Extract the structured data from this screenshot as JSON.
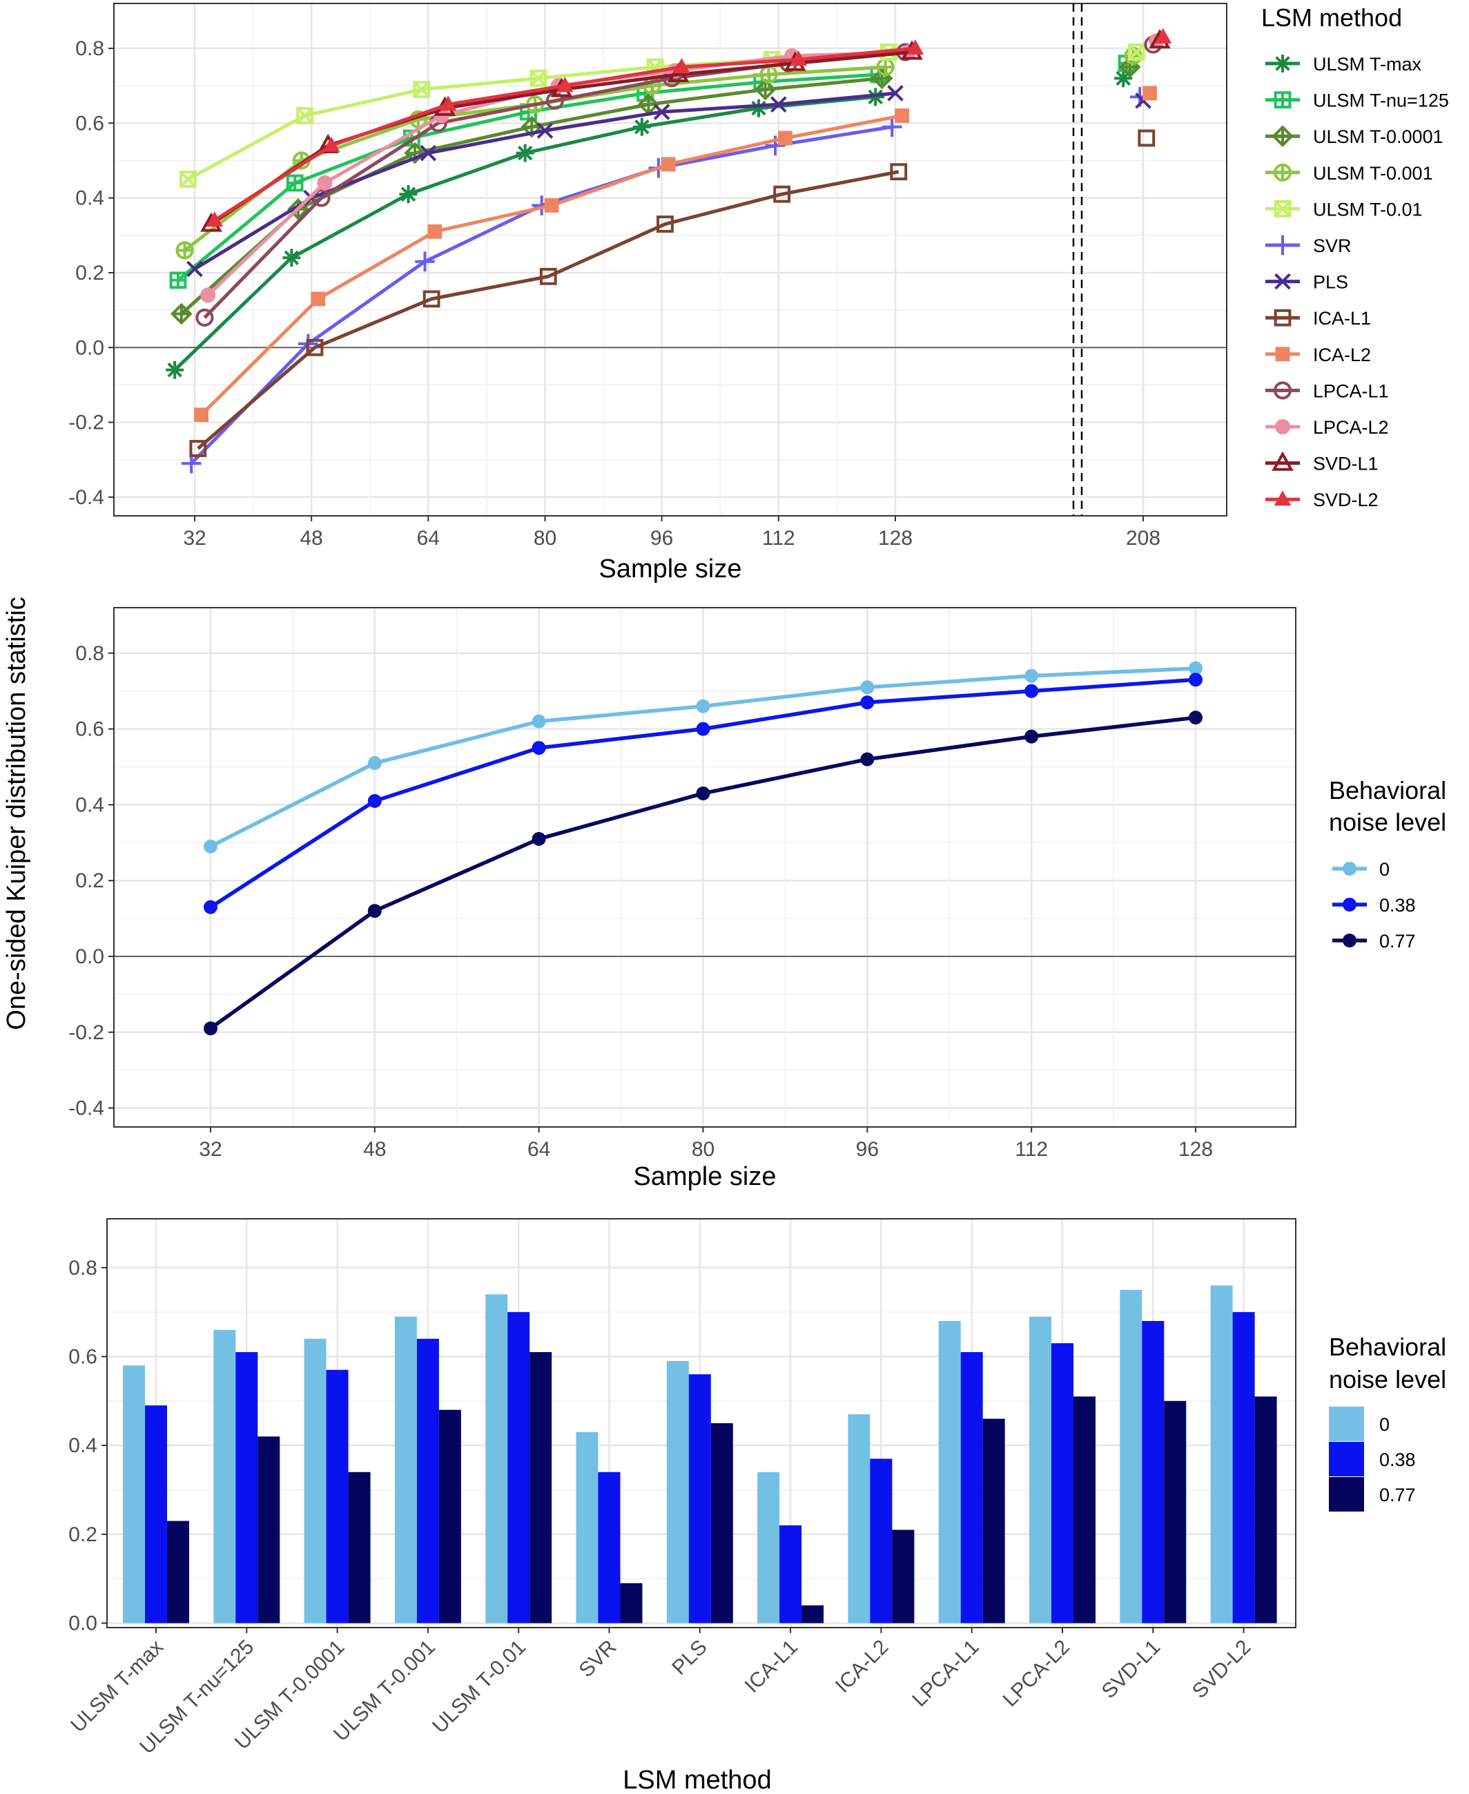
{
  "shared": {
    "ylabel": "One-sided Kuiper distribution statistic"
  },
  "chart_data": [
    {
      "type": "line",
      "xlabel": "Sample size",
      "x_ticks": [
        "32",
        "48",
        "64",
        "80",
        "96",
        "112",
        "128",
        "208"
      ],
      "x_break": "between 128 and 208 (dashed lines)",
      "ylim": [
        -0.45,
        0.92
      ],
      "y_ticks": [
        "0.8",
        "0.6",
        "0.4",
        "0.2",
        "0.0",
        "-0.2",
        "-0.4"
      ],
      "grid": true,
      "legend_title": "LSM method",
      "legend_position": "right",
      "x": [
        32,
        48,
        64,
        80,
        96,
        112,
        128,
        208
      ],
      "series": [
        {
          "name": "ULSM T-max",
          "color": "#1a8a45",
          "marker": "asterisk",
          "values": [
            -0.06,
            0.24,
            0.41,
            0.52,
            0.59,
            0.64,
            0.67,
            0.72
          ]
        },
        {
          "name": "ULSM T-nu=125",
          "color": "#22c35a",
          "marker": "square-cross",
          "values": [
            0.18,
            0.44,
            0.56,
            0.63,
            0.68,
            0.71,
            0.73,
            0.76
          ]
        },
        {
          "name": "ULSM T-0.0001",
          "color": "#5a8a2e",
          "marker": "diamond-plus",
          "values": [
            0.09,
            0.37,
            0.52,
            0.59,
            0.65,
            0.69,
            0.72,
            0.75
          ]
        },
        {
          "name": "ULSM T-0.001",
          "color": "#8cc63f",
          "marker": "circle-plus",
          "values": [
            0.26,
            0.5,
            0.61,
            0.65,
            0.7,
            0.73,
            0.75,
            0.78
          ]
        },
        {
          "name": "ULSM T-0.01",
          "color": "#c5f06a",
          "marker": "square-x",
          "values": [
            0.45,
            0.62,
            0.69,
            0.72,
            0.75,
            0.77,
            0.79,
            0.79
          ]
        },
        {
          "name": "SVR",
          "color": "#6a5cf0",
          "marker": "plus",
          "values": [
            -0.31,
            0.01,
            0.23,
            0.38,
            0.48,
            0.54,
            0.59,
            0.67
          ]
        },
        {
          "name": "PLS",
          "color": "#4b2c8c",
          "marker": "x",
          "values": [
            0.21,
            0.4,
            0.52,
            0.58,
            0.63,
            0.65,
            0.68,
            0.66
          ]
        },
        {
          "name": "ICA-L1",
          "color": "#7b4332",
          "marker": "square-open",
          "values": [
            -0.27,
            0.0,
            0.13,
            0.19,
            0.33,
            0.41,
            0.47,
            0.56
          ]
        },
        {
          "name": "ICA-L2",
          "color": "#ee8560",
          "marker": "square",
          "values": [
            -0.18,
            0.13,
            0.31,
            0.38,
            0.49,
            0.56,
            0.62,
            0.68
          ]
        },
        {
          "name": "LPCA-L1",
          "color": "#8c4a5a",
          "marker": "circle-open",
          "values": [
            0.08,
            0.4,
            0.6,
            0.66,
            0.72,
            0.76,
            0.79,
            0.81
          ]
        },
        {
          "name": "LPCA-L2",
          "color": "#ec8fa0",
          "marker": "circle",
          "values": [
            0.14,
            0.44,
            0.62,
            0.7,
            0.74,
            0.78,
            0.79,
            0.82
          ]
        },
        {
          "name": "SVD-L1",
          "color": "#8a1c26",
          "marker": "triangle-open",
          "values": [
            0.33,
            0.54,
            0.64,
            0.69,
            0.73,
            0.76,
            0.79,
            0.82
          ]
        },
        {
          "name": "SVD-L2",
          "color": "#e2333f",
          "marker": "triangle",
          "values": [
            0.34,
            0.54,
            0.65,
            0.7,
            0.75,
            0.77,
            0.8,
            0.83
          ]
        }
      ]
    },
    {
      "type": "line",
      "xlabel": "Sample size",
      "x_ticks": [
        "32",
        "48",
        "64",
        "80",
        "96",
        "112",
        "128"
      ],
      "ylim": [
        -0.45,
        0.92
      ],
      "y_ticks": [
        "0.8",
        "0.6",
        "0.4",
        "0.2",
        "0.0",
        "-0.2",
        "-0.4"
      ],
      "grid": true,
      "legend_title": "Behavioral noise level",
      "legend_position": "right",
      "x": [
        32,
        48,
        64,
        80,
        96,
        112,
        128
      ],
      "series": [
        {
          "name": "0",
          "color": "#6fbde6",
          "values": [
            0.29,
            0.51,
            0.62,
            0.66,
            0.71,
            0.74,
            0.76
          ]
        },
        {
          "name": "0.38",
          "color": "#0b16f0",
          "values": [
            0.13,
            0.41,
            0.55,
            0.6,
            0.67,
            0.7,
            0.73
          ]
        },
        {
          "name": "0.77",
          "color": "#08085e",
          "values": [
            -0.19,
            0.12,
            0.31,
            0.43,
            0.52,
            0.58,
            0.63
          ]
        }
      ]
    },
    {
      "type": "bar",
      "xlabel": "LSM method",
      "categories": [
        "ULSM T-max",
        "ULSM T-nu=125",
        "ULSM T-0.0001",
        "ULSM T-0.001",
        "ULSM T-0.01",
        "SVR",
        "PLS",
        "ICA-L1",
        "ICA-L2",
        "LPCA-L1",
        "LPCA-L2",
        "SVD-L1",
        "SVD-L2"
      ],
      "ylim": [
        -0.01,
        0.91
      ],
      "y_ticks": [
        "0.8",
        "0.6",
        "0.4",
        "0.2",
        "0.0"
      ],
      "grid": true,
      "legend_title": "Behavioral noise level",
      "legend_position": "right",
      "series": [
        {
          "name": "0",
          "color": "#74c0e4",
          "values": [
            0.58,
            0.66,
            0.64,
            0.69,
            0.74,
            0.43,
            0.59,
            0.34,
            0.47,
            0.68,
            0.69,
            0.75,
            0.76
          ]
        },
        {
          "name": "0.38",
          "color": "#0a12ef",
          "values": [
            0.49,
            0.61,
            0.57,
            0.64,
            0.7,
            0.34,
            0.56,
            0.22,
            0.37,
            0.61,
            0.63,
            0.68,
            0.7
          ]
        },
        {
          "name": "0.77",
          "color": "#050560",
          "values": [
            0.23,
            0.42,
            0.34,
            0.48,
            0.61,
            0.09,
            0.45,
            0.04,
            0.21,
            0.46,
            0.51,
            0.5,
            0.51
          ]
        }
      ]
    }
  ]
}
